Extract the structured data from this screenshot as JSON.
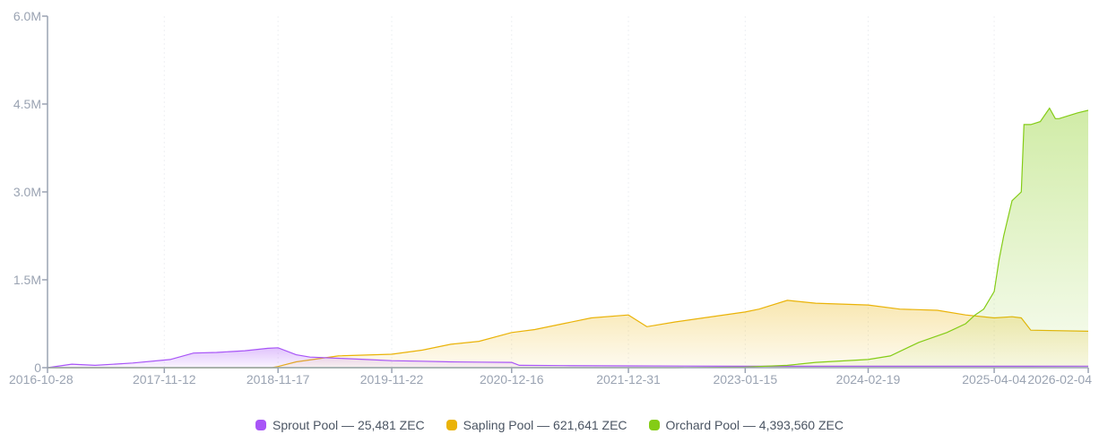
{
  "chart_data": {
    "type": "area",
    "title": "",
    "xlabel": "",
    "ylabel": "",
    "x_ticks": [
      "2016-10-28",
      "2017-11-12",
      "2018-11-17",
      "2019-11-22",
      "2020-12-16",
      "2021-12-31",
      "2023-01-15",
      "2024-02-19",
      "2025-04-04",
      "2026-02-04"
    ],
    "y_ticks": [
      "0",
      "1.5M",
      "3.0M",
      "4.5M",
      "6.0M"
    ],
    "ylim": [
      0,
      6000000
    ],
    "xlim": [
      "2016-10-28",
      "2026-02-04"
    ],
    "grid": "vertical",
    "legend_position": "bottom-center",
    "series": [
      {
        "name": "Sprout Pool — 25,481 ZEC",
        "color": "#a855f7",
        "x": [
          "2016-10-28",
          "2017-01-15",
          "2017-04-01",
          "2017-08-01",
          "2017-12-01",
          "2018-02-15",
          "2018-05-01",
          "2018-08-01",
          "2018-10-15",
          "2018-11-17",
          "2019-01-15",
          "2019-03-01",
          "2019-06-01",
          "2019-09-01",
          "2019-11-22",
          "2020-03-01",
          "2020-06-01",
          "2020-09-01",
          "2020-12-16",
          "2021-01-10",
          "2021-06-01",
          "2022-01-01",
          "2023-01-01",
          "2024-01-01",
          "2025-01-01",
          "2026-02-04"
        ],
        "values": [
          0,
          60000,
          40000,
          80000,
          140000,
          250000,
          260000,
          290000,
          330000,
          340000,
          220000,
          180000,
          160000,
          140000,
          120000,
          110000,
          100000,
          95000,
          90000,
          40000,
          35000,
          30000,
          25000,
          25000,
          25000,
          25481
        ]
      },
      {
        "name": "Sapling Pool — 621,641 ZEC",
        "color": "#eab308",
        "x": [
          "2016-10-28",
          "2018-10-28",
          "2018-11-17",
          "2019-01-15",
          "2019-06-01",
          "2019-11-22",
          "2020-03-01",
          "2020-06-01",
          "2020-09-01",
          "2020-12-16",
          "2021-03-01",
          "2021-06-01",
          "2021-09-01",
          "2021-12-31",
          "2022-03-01",
          "2022-06-01",
          "2022-09-01",
          "2023-01-15",
          "2023-03-01",
          "2023-06-01",
          "2023-09-01",
          "2024-02-19",
          "2024-06-01",
          "2024-10-01",
          "2025-01-01",
          "2025-04-04",
          "2025-06-01",
          "2025-07-01",
          "2025-08-01",
          "2026-02-04"
        ],
        "values": [
          0,
          0,
          20000,
          100000,
          200000,
          230000,
          300000,
          400000,
          450000,
          600000,
          650000,
          750000,
          850000,
          900000,
          700000,
          780000,
          850000,
          950000,
          1000000,
          1150000,
          1100000,
          1070000,
          1000000,
          980000,
          900000,
          850000,
          870000,
          850000,
          640000,
          621641
        ]
      },
      {
        "name": "Orchard Pool — 4,393,560 ZEC",
        "color": "#84cc16",
        "x": [
          "2016-10-28",
          "2022-05-31",
          "2023-01-15",
          "2023-06-01",
          "2023-09-01",
          "2024-02-19",
          "2024-05-01",
          "2024-08-01",
          "2024-11-01",
          "2025-01-01",
          "2025-02-01",
          "2025-03-01",
          "2025-04-04",
          "2025-04-20",
          "2025-05-05",
          "2025-06-01",
          "2025-07-01",
          "2025-07-10",
          "2025-08-01",
          "2025-09-01",
          "2025-10-01",
          "2025-10-20",
          "2025-11-01",
          "2026-01-01",
          "2026-02-04"
        ],
        "values": [
          0,
          0,
          10000,
          40000,
          90000,
          140000,
          200000,
          430000,
          600000,
          750000,
          900000,
          1000000,
          1300000,
          1850000,
          2250000,
          2850000,
          3000000,
          4150000,
          4150000,
          4200000,
          4430000,
          4250000,
          4250000,
          4350000,
          4393560
        ]
      }
    ]
  }
}
